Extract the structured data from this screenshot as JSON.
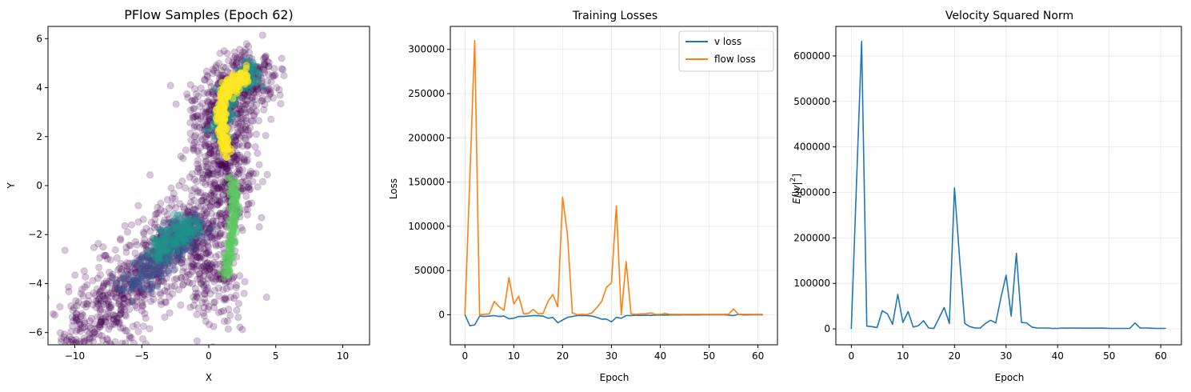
{
  "chart_data": [
    {
      "type": "scatter",
      "title": "PFlow Samples (Epoch 62)",
      "xlabel": "X",
      "ylabel": "Y",
      "xlim": [
        -12,
        12
      ],
      "ylim": [
        -6.5,
        6.5
      ],
      "xticks": [
        -10,
        -5,
        0,
        5,
        10
      ],
      "yticks": [
        -6,
        -4,
        -2,
        0,
        2,
        4,
        6
      ],
      "grid": false,
      "point_color": "#440154",
      "density_colormap": [
        "#440154",
        "#3b528b",
        "#21918c",
        "#5ec962",
        "#fde725"
      ],
      "clusters": [
        {
          "description_key": "upper-arm",
          "points": [
            [
              1.4,
              -1.0
            ],
            [
              1.2,
              0.0
            ],
            [
              1.0,
              1.0
            ],
            [
              0.9,
              2.0
            ],
            [
              0.9,
              3.0
            ],
            [
              1.5,
              3.8
            ],
            [
              2.5,
              4.3
            ],
            [
              3.3,
              4.6
            ]
          ]
        },
        {
          "description_key": "lower-left-arm",
          "points": [
            [
              -10,
              -6.4
            ],
            [
              -8,
              -5.2
            ],
            [
              -6,
              -4.2
            ],
            [
              -4,
              -3.2
            ],
            [
              -2,
              -2.1
            ],
            [
              -1.0,
              -1.6
            ],
            [
              0.0,
              -3.0
            ],
            [
              0.5,
              -4.5
            ]
          ]
        },
        {
          "description_key": "curve-dense",
          "points": [
            [
              1.3,
              -3.6
            ],
            [
              1.6,
              -2.5
            ],
            [
              1.9,
              -1.2
            ],
            [
              1.8,
              0.2
            ],
            [
              1.4,
              1.2
            ],
            [
              1.0,
              2.2
            ],
            [
              0.9,
              3.0
            ],
            [
              1.2,
              3.8
            ],
            [
              2.0,
              4.2
            ],
            [
              2.8,
              4.5
            ]
          ]
        }
      ]
    },
    {
      "type": "line",
      "title": "Training Losses",
      "xlabel": "Epoch",
      "ylabel": "Loss",
      "xlim": [
        -3,
        64
      ],
      "ylim": [
        -34000,
        326000
      ],
      "xticks": [
        0,
        10,
        20,
        30,
        40,
        50,
        60
      ],
      "yticks": [
        0,
        50000,
        100000,
        150000,
        200000,
        250000,
        300000
      ],
      "grid": true,
      "legend": "top-right",
      "x": [
        0,
        1,
        2,
        3,
        4,
        5,
        6,
        7,
        8,
        9,
        10,
        11,
        12,
        13,
        14,
        15,
        16,
        17,
        18,
        19,
        20,
        21,
        22,
        23,
        24,
        25,
        26,
        27,
        28,
        29,
        30,
        31,
        32,
        33,
        34,
        35,
        36,
        37,
        38,
        39,
        40,
        41,
        42,
        43,
        44,
        45,
        46,
        47,
        48,
        49,
        50,
        51,
        52,
        53,
        54,
        55,
        56,
        57,
        58,
        59,
        60,
        61
      ],
      "series": [
        {
          "name": "v loss",
          "color": "#1f77b4",
          "values": [
            0,
            -12500,
            -11500,
            -1500,
            -2000,
            -1500,
            -1000,
            -2000,
            -1500,
            -4500,
            -4000,
            -2000,
            -2000,
            -1500,
            -1000,
            -1200,
            -1500,
            -4000,
            -3000,
            -9000,
            -6000,
            -3000,
            -2000,
            -1000,
            -1000,
            -1000,
            -1500,
            -3000,
            -5000,
            -5000,
            -8000,
            -3000,
            -4000,
            -1000,
            -1000,
            -500,
            -800,
            -500,
            -700,
            -500,
            -300,
            -400,
            -300,
            -200,
            -300,
            -200,
            -200,
            -150,
            -150,
            -100,
            -100,
            -100,
            -100,
            -100,
            -500,
            -1000,
            500,
            -300,
            -200,
            -100,
            -100,
            -100
          ]
        },
        {
          "name": "flow loss",
          "color": "#ff7f0e",
          "values": [
            0,
            155000,
            310000,
            0,
            500,
            1000,
            15000,
            9000,
            5000,
            42000,
            12000,
            21000,
            1000,
            1500,
            6000,
            1000,
            1500,
            15000,
            23000,
            9000,
            133000,
            90000,
            2000,
            0,
            500,
            200,
            2000,
            8000,
            15000,
            31000,
            36000,
            123000,
            0,
            60000,
            1000,
            500,
            1000,
            1000,
            2000,
            500,
            500,
            1500,
            500,
            500,
            500,
            500,
            500,
            500,
            500,
            500,
            500,
            500,
            500,
            500,
            500,
            6500,
            500,
            500,
            500,
            500,
            500,
            500
          ]
        }
      ]
    },
    {
      "type": "line",
      "title": "Velocity Squared Norm",
      "xlabel": "Epoch",
      "ylabel": "E[|v|²]",
      "ylabel_base": "E[|v|",
      "ylabel_sup": "2",
      "ylabel_end": "]",
      "xlim": [
        -3,
        64
      ],
      "ylim": [
        -35000,
        665000
      ],
      "xticks": [
        0,
        10,
        20,
        30,
        40,
        50,
        60
      ],
      "yticks": [
        0,
        100000,
        200000,
        300000,
        400000,
        500000,
        600000
      ],
      "grid": true,
      "x": [
        0,
        1,
        2,
        3,
        4,
        5,
        6,
        7,
        8,
        9,
        10,
        11,
        12,
        13,
        14,
        15,
        16,
        17,
        18,
        19,
        20,
        21,
        22,
        23,
        24,
        25,
        26,
        27,
        28,
        29,
        30,
        31,
        32,
        33,
        34,
        35,
        36,
        37,
        38,
        39,
        40,
        41,
        42,
        43,
        44,
        45,
        46,
        47,
        48,
        49,
        50,
        51,
        52,
        53,
        54,
        55,
        56,
        57,
        58,
        59,
        60,
        61
      ],
      "series": [
        {
          "color": "#1f77b4",
          "values": [
            0,
            320000,
            632000,
            6000,
            5000,
            3000,
            40000,
            33000,
            10000,
            76000,
            14000,
            38000,
            4000,
            7000,
            18000,
            2000,
            1000,
            24000,
            47000,
            12000,
            310000,
            155000,
            12000,
            5000,
            2000,
            2000,
            12000,
            19000,
            13000,
            68000,
            118000,
            28000,
            166000,
            14000,
            13000,
            4000,
            2000,
            2000,
            2000,
            1000,
            1000,
            2000,
            1500,
            2000,
            1500,
            1500,
            1500,
            1500,
            1500,
            1500,
            1000,
            1000,
            1000,
            1000,
            1000,
            13000,
            2000,
            2000,
            1500,
            1000,
            1000,
            1000
          ]
        }
      ]
    }
  ]
}
